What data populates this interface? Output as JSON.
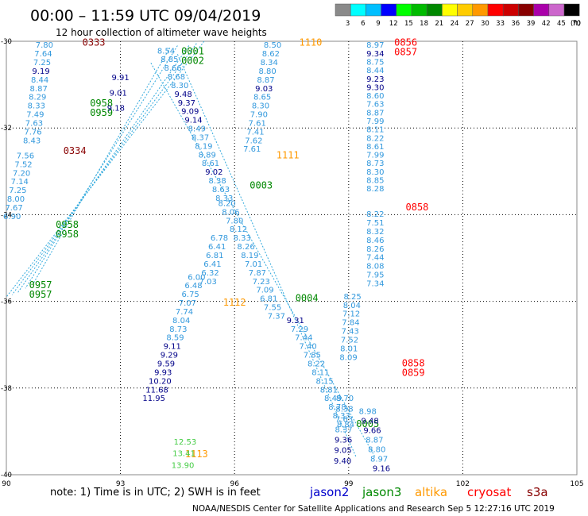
{
  "header": {
    "title": "00:00 – 11:59 UTC 09/04/2019",
    "subtitle": "12 hour collection of altimeter wave heights"
  },
  "legend": {
    "unit": "(ft)",
    "bins": [
      {
        "label": "3",
        "color": "#8a8a8a"
      },
      {
        "label": "6",
        "color": "#00ffff"
      },
      {
        "label": "9",
        "color": "#00bfff"
      },
      {
        "label": "12",
        "color": "#0000ff"
      },
      {
        "label": "15",
        "color": "#00ff00"
      },
      {
        "label": "18",
        "color": "#00bb00"
      },
      {
        "label": "21",
        "color": "#008800"
      },
      {
        "label": "24",
        "color": "#ffff00"
      },
      {
        "label": "27",
        "color": "#ffcc00"
      },
      {
        "label": "30",
        "color": "#ff9900"
      },
      {
        "label": "33",
        "color": "#ff0000"
      },
      {
        "label": "36",
        "color": "#cc0000"
      },
      {
        "label": "39",
        "color": "#880000"
      },
      {
        "label": "42",
        "color": "#aa00aa"
      },
      {
        "label": "45",
        "color": "#cc66cc"
      },
      {
        "label": "70",
        "color": "#000000"
      }
    ]
  },
  "axes": {
    "lon_ticks": [
      "90",
      "93",
      "96",
      "99",
      "102",
      "105"
    ],
    "lat_ticks": [
      "-30",
      "-32",
      "-34",
      "-36",
      "-38",
      "-40"
    ],
    "xlim": [
      90,
      105
    ],
    "ylim": [
      -40,
      -30
    ]
  },
  "footer": {
    "note": "note:  1) Time is in UTC;  2) SWH is in feet",
    "credit": "NOAA/NESDIS Center for Satellite Applications and Research    Sep  5 12:27:16 UTC 2019"
  },
  "satellites": [
    {
      "name": "jason2",
      "color": "#0000cc"
    },
    {
      "name": "jason3",
      "color": "#008800"
    },
    {
      "name": "altika",
      "color": "#ff9900"
    },
    {
      "name": "cryosat",
      "color": "#ff0000"
    },
    {
      "name": "s3a",
      "color": "#880000"
    }
  ],
  "colors": {
    "jason2": "#0000aa",
    "jason3": "#008800",
    "altika": "#ff9900",
    "cryosat": "#ff0000",
    "s3a": "#880000",
    "swh_low": "#3399dd",
    "swh_mid": "#000088",
    "swh_green": "#44cc44"
  },
  "chart_data": {
    "type": "scatter",
    "tracks": [
      {
        "satellite": "cryosat",
        "times": [
          "0856",
          "0857"
        ],
        "lon": 100.5,
        "lat": -30.1,
        "swh": [
          8.97,
          9.34,
          8.75,
          8.44,
          9.23,
          9.3,
          8.6,
          7.63,
          8.87,
          7.99,
          8.11,
          8.22,
          8.61,
          7.99,
          8.73,
          8.3,
          8.85,
          8.28
        ]
      },
      {
        "satellite": "cryosat",
        "times": [
          "0858"
        ],
        "lon": 100.8,
        "lat": -33.9,
        "swh": [
          8.22,
          7.51,
          8.32,
          8.46,
          8.26,
          7.44,
          8.08,
          7.95,
          7.34
        ]
      },
      {
        "satellite": "cryosat",
        "times": [
          "0858",
          "0859"
        ],
        "lon": 100.7,
        "lat": -37.5,
        "swh": [
          8.25,
          8.04,
          7.12,
          7.84,
          7.43,
          7.52,
          8.01,
          8.09
        ]
      },
      {
        "satellite": "altika",
        "times": [
          "1110"
        ],
        "lon": 98.0,
        "lat": -30.1,
        "swh": [
          8.5,
          8.62,
          8.34,
          8.8,
          8.87,
          9.03,
          8.65,
          8.3,
          7.9,
          7.61,
          7.41,
          7.62,
          7.61
        ]
      },
      {
        "satellite": "altika",
        "times": [
          "1111"
        ],
        "lon": 97.4,
        "lat": -32.7,
        "swh": []
      },
      {
        "satellite": "altika",
        "times": [
          "1112"
        ],
        "lon": 96.0,
        "lat": -36.1,
        "swh": []
      },
      {
        "satellite": "altika",
        "times": [
          "1113"
        ],
        "lon": 95.0,
        "lat": -39.6,
        "swh": [
          12.53,
          13.41,
          13.9
        ]
      },
      {
        "satellite": "jason3",
        "times": [
          "0001",
          "0002"
        ],
        "lon": 94.9,
        "lat": -30.3,
        "swh": [
          8.54,
          8.85,
          8.66,
          8.68,
          8.3,
          9.48,
          9.37,
          9.09,
          9.14,
          8.49,
          8.37,
          8.19,
          8.89,
          8.61,
          9.02,
          8.38,
          8.63,
          8.33
        ]
      },
      {
        "satellite": "jason3",
        "times": [
          "0003"
        ],
        "lon": 96.7,
        "lat": -33.4,
        "swh": [
          8.2,
          8.06,
          7.8,
          8.12,
          8.33,
          8.26,
          8.19,
          7.01,
          7.87,
          7.23,
          7.09,
          6.81,
          7.55,
          7.37
        ]
      },
      {
        "satellite": "jason3",
        "times": [
          "0004"
        ],
        "lon": 97.9,
        "lat": -36.0,
        "swh": [
          9.31,
          7.29,
          7.44,
          7.4,
          7.85,
          8.22,
          8.11,
          8.15,
          8.81,
          8.49,
          8.78,
          8.33,
          8.84
        ]
      },
      {
        "satellite": "jason3",
        "times": [
          "0005"
        ],
        "lon": 99.5,
        "lat": -38.9,
        "swh": [
          8.98,
          9.48,
          9.66,
          8.87,
          8.8,
          8.97,
          9.16
        ]
      },
      {
        "satellite": "jason3",
        "times": [
          "0958",
          "0959"
        ],
        "lon": 92.5,
        "lat": -31.5,
        "swh": []
      },
      {
        "satellite": "jason3",
        "times": [
          "0958",
          "0958"
        ],
        "lon": 91.6,
        "lat": -34.3,
        "swh": []
      },
      {
        "satellite": "jason3",
        "times": [
          "0957",
          "0957"
        ],
        "lon": 90.9,
        "lat": -35.7,
        "swh": []
      },
      {
        "satellite": "s3a",
        "times": [
          "0333"
        ],
        "lon": 92.3,
        "lat": -30.1,
        "swh": [
          7.8,
          7.64,
          7.25,
          9.19,
          8.44,
          8.87,
          8.29,
          8.33,
          7.49,
          7.63,
          7.76,
          8.43
        ]
      },
      {
        "satellite": "s3a",
        "times": [
          "0334"
        ],
        "lon": 91.8,
        "lat": -32.6,
        "swh": [
          7.56,
          7.52,
          7.2,
          7.14,
          7.25,
          8.0,
          7.67,
          6.9
        ]
      }
    ],
    "descending_track_swh": [
      9.91,
      9.01,
      9.18,
      6.0,
      6.48,
      6.75,
      7.07,
      7.74,
      8.04,
      8.73,
      8.59,
      9.11,
      9.29,
      9.59,
      9.93,
      10.2,
      11.68,
      11.95,
      6.78,
      6.41,
      6.81,
      6.41,
      6.32,
      7.03
    ],
    "lower_track_swh": [
      8.7,
      8.38,
      7.63,
      8.37,
      9.36,
      9.05,
      9.4
    ]
  }
}
